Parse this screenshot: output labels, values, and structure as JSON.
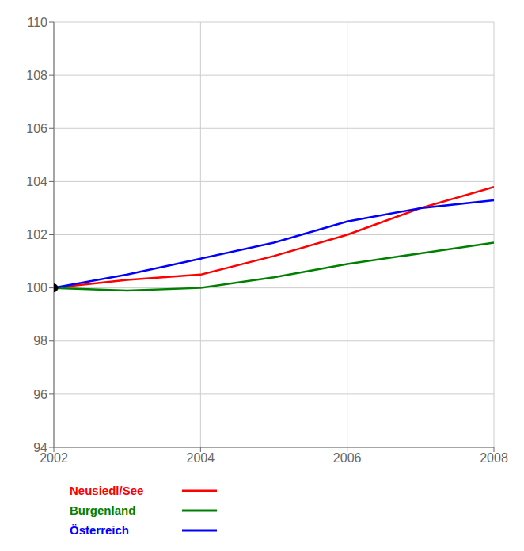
{
  "chart_data": {
    "type": "line",
    "x": [
      2002,
      2003,
      2004,
      2005,
      2006,
      2007,
      2008
    ],
    "series": [
      {
        "name": "Neusiedl/See",
        "color": "#ff0000",
        "values": [
          100.0,
          100.3,
          100.5,
          101.2,
          102.0,
          103.0,
          103.8
        ]
      },
      {
        "name": "Burgenland",
        "color": "#008000",
        "values": [
          100.0,
          99.9,
          100.0,
          100.4,
          100.9,
          101.3,
          101.7
        ]
      },
      {
        "name": "Österreich",
        "color": "#0000ff",
        "values": [
          100.0,
          100.5,
          101.1,
          101.7,
          102.5,
          103.0,
          103.3
        ]
      },
      {
        "type": "scatter",
        "color": "#000000",
        "values": [
          100.0,
          null,
          null,
          null,
          null,
          null,
          null
        ]
      }
    ],
    "xlim": [
      2002,
      2008
    ],
    "ylim": [
      94,
      110
    ],
    "xticks": [
      2002,
      2004,
      2006,
      2008
    ],
    "yticks": [
      94,
      96,
      98,
      100,
      102,
      104,
      106,
      108,
      110
    ],
    "grid": true
  }
}
